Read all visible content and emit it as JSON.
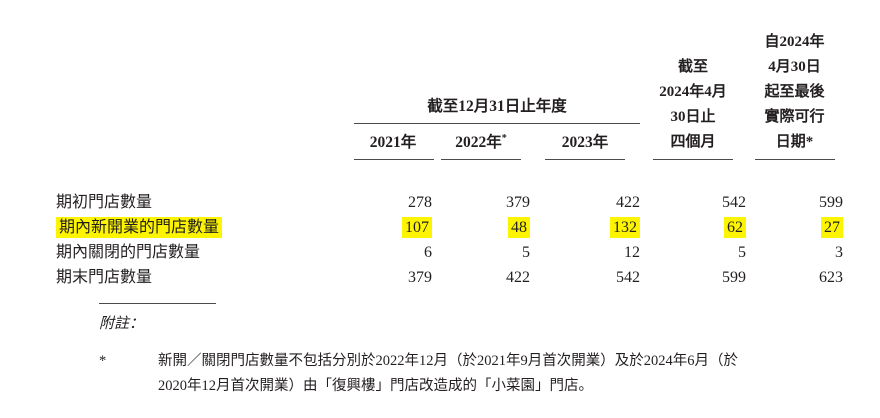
{
  "table": {
    "col_group_header": "截至12月31日止年度",
    "year_columns": [
      {
        "label": "2021年",
        "sup": ""
      },
      {
        "label": "2022年",
        "sup": "*"
      },
      {
        "label": "2023年",
        "sup": ""
      }
    ],
    "period_column": {
      "lines": [
        "截至",
        "2024年4月",
        "30日止",
        "四個月"
      ]
    },
    "latest_column": {
      "lines": [
        "自2024年",
        "4月30日",
        "起至最後",
        "實際可行",
        "日期*"
      ]
    },
    "rows": [
      {
        "label": "期初門店數量",
        "values": [
          "278",
          "379",
          "422",
          "542",
          "599"
        ],
        "highlight": false
      },
      {
        "label": "期內新開業的門店數量",
        "values": [
          "107",
          "48",
          "132",
          "62",
          "27"
        ],
        "highlight": true
      },
      {
        "label": "期內關閉的門店數量",
        "values": [
          "6",
          "5",
          "12",
          "5",
          "3"
        ],
        "highlight": false
      },
      {
        "label": "期末門店數量",
        "values": [
          "379",
          "422",
          "542",
          "599",
          "623"
        ],
        "highlight": false
      }
    ]
  },
  "notes": {
    "heading": "附註：",
    "footnotes": [
      {
        "marker": "*",
        "lines": [
          "新開／關閉門店數量不包括分別於2022年12月（於2021年9月首次開業）及於2024年6月（於",
          "2020年12月首次開業）由「復興樓」門店改造成的「小菜園」門店。"
        ]
      }
    ]
  },
  "colors": {
    "highlight": "#fdf500",
    "text": "#231f20",
    "rule": "#4a4a4a"
  }
}
